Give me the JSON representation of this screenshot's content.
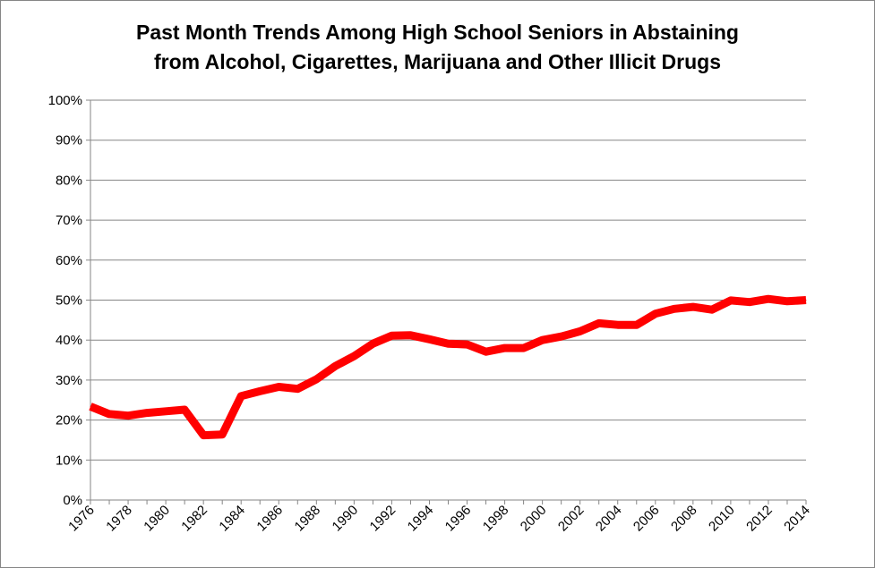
{
  "chart_data": {
    "type": "line",
    "title_lines": [
      "Past Month Trends Among High School Seniors in Abstaining",
      "from Alcohol, Cigarettes, Marijuana and Other Illicit Drugs"
    ],
    "xlabel": "",
    "ylabel": "",
    "ylim": [
      0,
      100
    ],
    "y_ticks": [
      "0%",
      "10%",
      "20%",
      "30%",
      "40%",
      "50%",
      "60%",
      "70%",
      "80%",
      "90%",
      "100%"
    ],
    "x_ticks": [
      "1976",
      "1978",
      "1980",
      "1982",
      "1984",
      "1986",
      "1988",
      "1990",
      "1992",
      "1994",
      "1996",
      "1998",
      "2000",
      "2002",
      "2004",
      "2006",
      "2008",
      "2010",
      "2012",
      "2014"
    ],
    "grid": true,
    "legend": "none",
    "series": [
      {
        "color": "#ff0000",
        "x": [
          1976,
          1977,
          1978,
          1979,
          1980,
          1981,
          1982,
          1983,
          1984,
          1985,
          1986,
          1987,
          1988,
          1989,
          1990,
          1991,
          1992,
          1993,
          1994,
          1995,
          1996,
          1997,
          1998,
          1999,
          2000,
          2001,
          2002,
          2003,
          2004,
          2005,
          2006,
          2007,
          2008,
          2009,
          2010,
          2011,
          2012,
          2013,
          2014
        ],
        "values": [
          23.4,
          21.5,
          21.1,
          21.8,
          22.2,
          22.6,
          16.2,
          16.4,
          26.0,
          27.2,
          28.3,
          27.8,
          30.2,
          33.5,
          36.0,
          39.1,
          41.1,
          41.2,
          40.2,
          39.1,
          38.9,
          37.1,
          38.0,
          38.0,
          40.0,
          40.9,
          42.2,
          44.2,
          43.8,
          43.8,
          46.6,
          47.8,
          48.3,
          47.6,
          49.9,
          49.5,
          50.3,
          49.7,
          50.0
        ]
      }
    ]
  }
}
